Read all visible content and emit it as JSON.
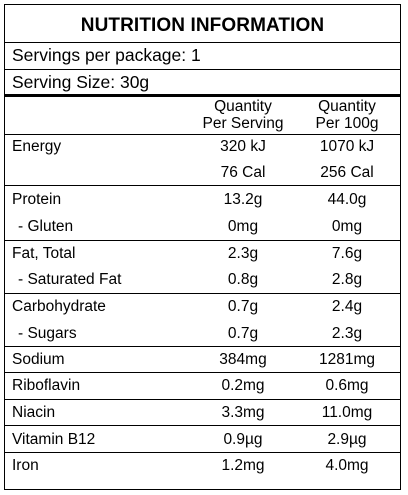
{
  "title": "NUTRITION INFORMATION",
  "servings_per_package": "Servings per package: 1",
  "serving_size": "Serving Size: 30g",
  "header": {
    "per_serving": [
      "Quantity",
      "Per Serving"
    ],
    "per_100g": [
      "Quantity",
      "Per 100g"
    ]
  },
  "rows": [
    {
      "label": "Energy",
      "per_serving": "320 kJ",
      "per_100g": "1070 kJ"
    },
    {
      "label": "",
      "per_serving": "76 Cal",
      "per_100g": "256 Cal"
    },
    {
      "label": "Protein",
      "per_serving": "13.2g",
      "per_100g": "44.0g"
    },
    {
      "label": "- Gluten",
      "per_serving": "0mg",
      "per_100g": "0mg"
    },
    {
      "label": "Fat, Total",
      "per_serving": "2.3g",
      "per_100g": "7.6g"
    },
    {
      "label": "- Saturated Fat",
      "per_serving": "0.8g",
      "per_100g": "2.8g"
    },
    {
      "label": "Carbohydrate",
      "per_serving": "0.7g",
      "per_100g": "2.4g"
    },
    {
      "label": "- Sugars",
      "per_serving": "0.7g",
      "per_100g": "2.3g"
    },
    {
      "label": "Sodium",
      "per_serving": "384mg",
      "per_100g": "1281mg"
    },
    {
      "label": "Riboflavin",
      "per_serving": "0.2mg",
      "per_100g": "0.6mg"
    },
    {
      "label": "Niacin",
      "per_serving": "3.3mg",
      "per_100g": "11.0mg"
    },
    {
      "label": "Vitamin B12",
      "per_serving": "0.9µg",
      "per_100g": "2.9µg"
    },
    {
      "label": "Iron",
      "per_serving": "1.2mg",
      "per_100g": "4.0mg"
    }
  ]
}
